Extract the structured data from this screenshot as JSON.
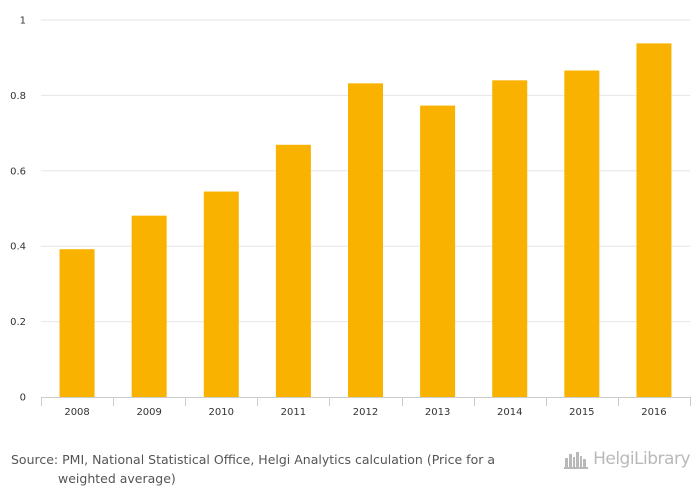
{
  "chart_data": {
    "type": "bar",
    "categories": [
      "2008",
      "2009",
      "2010",
      "2011",
      "2012",
      "2013",
      "2014",
      "2015",
      "2016"
    ],
    "values": [
      0.392,
      0.481,
      0.545,
      0.669,
      0.832,
      0.773,
      0.84,
      0.866,
      0.938
    ],
    "ylim": [
      0,
      1
    ],
    "yticks": [
      "0",
      "0.2",
      "0.4",
      "0.6",
      "0.8",
      "1"
    ],
    "title": "",
    "xlabel": "",
    "ylabel": "",
    "grid": true,
    "bar_color": "#F9B200",
    "grid_color": "#E6E6E6"
  },
  "source": {
    "line1": "Source: PMI, National Statistical Office, Helgi Analytics calculation (Price for a",
    "line2": "weighted average)"
  },
  "logo": {
    "text": "HelgiLibrary",
    "icon": "city-skyline-icon",
    "color": "#B9B9B9"
  }
}
